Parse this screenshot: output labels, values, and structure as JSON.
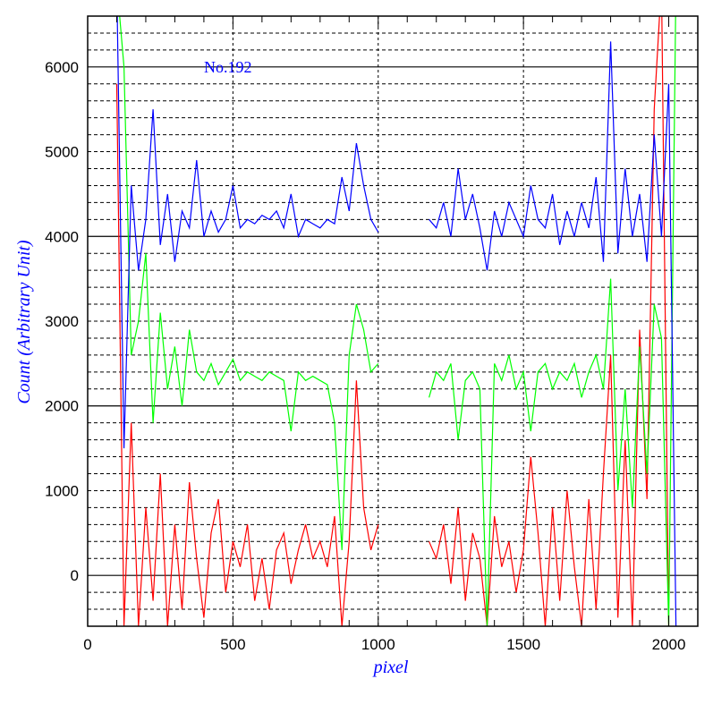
{
  "chart_data": {
    "type": "line",
    "title": "",
    "annotation": "No.192",
    "xlabel": "pixel",
    "ylabel": "Count (Arbitrary Unit)",
    "xlim": [
      0,
      2100
    ],
    "ylim": [
      -600,
      6600
    ],
    "xticks": [
      "0",
      "500",
      "1000",
      "1500",
      "2000"
    ],
    "yticks": [
      "0",
      "1000",
      "2000",
      "3000",
      "4000",
      "5000",
      "6000"
    ],
    "grid": true,
    "x": [
      100,
      125,
      150,
      175,
      200,
      225,
      250,
      275,
      300,
      325,
      350,
      375,
      400,
      425,
      450,
      475,
      500,
      525,
      550,
      575,
      600,
      625,
      650,
      675,
      700,
      725,
      750,
      775,
      800,
      825,
      850,
      875,
      900,
      925,
      950,
      975,
      1000,
      1025,
      1050,
      1075,
      1100,
      1125,
      1150,
      1175,
      1200,
      1225,
      1250,
      1275,
      1300,
      1325,
      1350,
      1375,
      1400,
      1425,
      1450,
      1475,
      1500,
      1525,
      1550,
      1575,
      1600,
      1625,
      1650,
      1675,
      1700,
      1725,
      1750,
      1775,
      1800,
      1825,
      1850,
      1875,
      1900,
      1925,
      1950,
      1975,
      2000,
      2025,
      2050
    ],
    "series": [
      {
        "name": "blue",
        "color": "#0000ff",
        "values": [
          7000,
          1500,
          4600,
          3600,
          4200,
          5500,
          3900,
          4500,
          3700,
          4300,
          4100,
          4900,
          4000,
          4300,
          4050,
          4200,
          4600,
          4100,
          4200,
          4150,
          4250,
          4200,
          4300,
          4100,
          4500,
          4000,
          4200,
          4150,
          4100,
          4200,
          4150,
          4700,
          4300,
          5100,
          4600,
          4200,
          4050,
          null,
          null,
          null,
          null,
          null,
          null,
          4200,
          4100,
          4400,
          4000,
          4800,
          4200,
          4500,
          4100,
          3600,
          4300,
          4000,
          4400,
          4200,
          4000,
          4600,
          4200,
          4100,
          4500,
          3900,
          4300,
          4000,
          4400,
          4100,
          4700,
          3700,
          6300,
          3800,
          4800,
          4000,
          4500,
          3700,
          5200,
          4000,
          5800,
          -600,
          null
        ]
      },
      {
        "name": "green",
        "color": "#00ff00",
        "values": [
          7000,
          6000,
          2600,
          3000,
          3800,
          1800,
          3100,
          2200,
          2700,
          2000,
          2900,
          2400,
          2300,
          2500,
          2250,
          2400,
          2550,
          2300,
          2400,
          2350,
          2300,
          2400,
          2350,
          2300,
          1700,
          2400,
          2300,
          2350,
          2300,
          2250,
          1800,
          300,
          2600,
          3200,
          2900,
          2400,
          2500,
          null,
          null,
          null,
          null,
          null,
          null,
          2100,
          2400,
          2300,
          2500,
          1600,
          2300,
          2400,
          2200,
          -600,
          2500,
          2300,
          2600,
          2200,
          2400,
          1700,
          2400,
          2500,
          2200,
          2400,
          2300,
          2500,
          2100,
          2400,
          2600,
          2200,
          3500,
          1000,
          2200,
          800,
          2700,
          1200,
          3200,
          2800,
          -600,
          7000,
          null
        ]
      },
      {
        "name": "red",
        "color": "#ff0000",
        "values": [
          5800,
          -600,
          1800,
          -600,
          800,
          -300,
          1200,
          -600,
          600,
          -400,
          1100,
          200,
          -500,
          500,
          900,
          -200,
          400,
          100,
          600,
          -300,
          200,
          -400,
          300,
          500,
          -100,
          300,
          600,
          200,
          400,
          100,
          700,
          -600,
          400,
          2300,
          800,
          300,
          600,
          null,
          null,
          null,
          null,
          null,
          null,
          400,
          200,
          600,
          -100,
          800,
          -300,
          500,
          200,
          -600,
          700,
          100,
          400,
          -200,
          300,
          1400,
          500,
          -600,
          800,
          -300,
          1000,
          100,
          -600,
          900,
          -400,
          1200,
          2600,
          -500,
          1600,
          -600,
          2900,
          900,
          5500,
          7000,
          -600,
          null,
          null
        ]
      }
    ]
  }
}
